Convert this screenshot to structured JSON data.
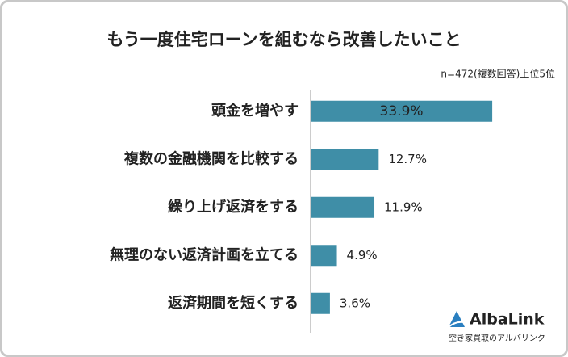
{
  "chart_data": {
    "type": "bar",
    "orientation": "horizontal",
    "title": "もう一度住宅ローンを組むなら改善したいこと",
    "subtitle": "n=472(複数回答)上位5位",
    "categories": [
      "頭金を増やす",
      "複数の金融機関を比較する",
      "繰り上げ返済をする",
      "無理のない返済計画を立てる",
      "返済期間を短くする"
    ],
    "values": [
      33.9,
      12.7,
      11.9,
      4.9,
      3.6
    ],
    "value_labels": [
      "33.9%",
      "12.7%",
      "11.9%",
      "4.9%",
      "3.6%"
    ],
    "color": "#3f8ea7"
  },
  "logo": {
    "name": "AlbaLink",
    "tagline": "空き家買取のアルバリンク"
  }
}
